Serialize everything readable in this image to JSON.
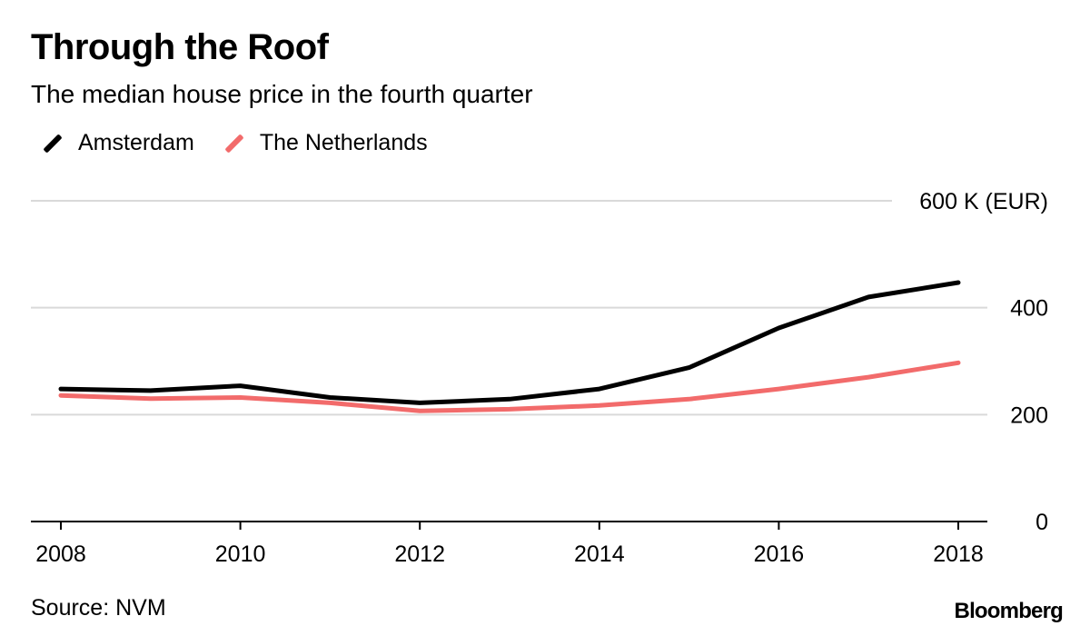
{
  "header": {
    "title": "Through the Roof",
    "subtitle": "The median house price in the fourth quarter"
  },
  "footer": {
    "source": "Source: NVM",
    "brand": "Bloomberg"
  },
  "chart_data": {
    "type": "line",
    "title": "Through the Roof",
    "subtitle": "The median house price in the fourth quarter",
    "x": [
      2008,
      2009,
      2010,
      2011,
      2012,
      2013,
      2014,
      2015,
      2016,
      2017,
      2018
    ],
    "series": [
      {
        "name": "Amsterdam",
        "color": "#000000",
        "values": [
          248,
          245,
          254,
          232,
          222,
          229,
          248,
          288,
          362,
          420,
          447
        ]
      },
      {
        "name": "The Netherlands",
        "color": "#f26b6b",
        "values": [
          236,
          230,
          232,
          222,
          207,
          210,
          217,
          229,
          248,
          270,
          297
        ]
      }
    ],
    "x_ticks": [
      "2008",
      "2010",
      "2012",
      "2014",
      "2016",
      "2018"
    ],
    "y_ticks": [
      "0",
      "200",
      "400",
      "600 K (EUR)"
    ],
    "y_tick_values": [
      0,
      200,
      400,
      600
    ],
    "ylim": [
      0,
      600
    ],
    "xlim": [
      2008,
      2018
    ],
    "ylabel_unit": "K (EUR)",
    "grid": true,
    "legend_position": "top-left",
    "y_axis_position": "right"
  }
}
